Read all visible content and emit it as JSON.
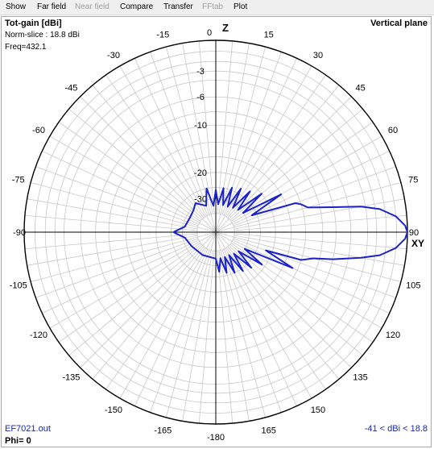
{
  "menu": [
    {
      "label": "Show",
      "enabled": true
    },
    {
      "label": "Far field",
      "enabled": true
    },
    {
      "label": "Near field",
      "enabled": false
    },
    {
      "label": "Compare",
      "enabled": true
    },
    {
      "label": "Transfer",
      "enabled": true
    },
    {
      "label": "FFtab",
      "enabled": false
    },
    {
      "label": "Plot",
      "enabled": true
    }
  ],
  "plot": {
    "title": "Tot-gain [dBi]",
    "norm_slice": "Norm-slice : 18.8 dBi",
    "freq": "Freq=432.1",
    "plane": "Vertical plane",
    "file": "EF7021.out",
    "phi": "Phi= 0",
    "range": "-41 < dBi < 18.8",
    "z_axis_label": "Z",
    "xy_axis_label": "XY",
    "angle_labels": [
      "0",
      "15",
      "30",
      "45",
      "60",
      "75",
      "90",
      "105",
      "120",
      "135",
      "150",
      "165",
      "-180",
      "-165",
      "-150",
      "-135",
      "-120",
      "-105",
      "-90",
      "-75",
      "-60",
      "-45",
      "-30",
      "-15"
    ],
    "ring_labels": [
      "-3",
      "-6",
      "-10",
      "-20",
      "-30"
    ]
  },
  "colors": {
    "trace": "#1a22c8",
    "grid": "#c8c8c8",
    "axis": "#000000",
    "label_blue": "#1a2aa0"
  },
  "chart_data": {
    "type": "polar",
    "title": "Tot-gain [dBi]",
    "unit": "dBi",
    "max_gain_dbi": 18.8,
    "min_gain_dbi": -41,
    "ring_labels_db": [
      -3,
      -6,
      -10,
      -20,
      -30
    ],
    "angle_ticks_deg": [
      0,
      15,
      30,
      45,
      60,
      75,
      90,
      105,
      120,
      135,
      150,
      165,
      -180,
      -165,
      -150,
      -135,
      -120,
      -105,
      -90,
      -75,
      -60,
      -45,
      -30,
      -15
    ],
    "series": [
      {
        "angle_deg": [
          -180,
          -150,
          -120,
          -100,
          -92,
          -90,
          -88,
          -80,
          -60,
          -45,
          -35,
          -20,
          -12,
          -5,
          0,
          5,
          10,
          15,
          20,
          25,
          30,
          35,
          40,
          45,
          50,
          55,
          60,
          65,
          70,
          72,
          75,
          78,
          80,
          82,
          85,
          88,
          90,
          92,
          95,
          98,
          100,
          103,
          105,
          108,
          110,
          115,
          120,
          125,
          130,
          135,
          140,
          145,
          150,
          155,
          160,
          165,
          170,
          175,
          180
        ],
        "relative_db": [
          -34,
          -34,
          -33,
          -31,
          -27,
          -26,
          -27,
          -31,
          -32,
          -31,
          -29,
          -33,
          -25,
          -34,
          -26,
          -33,
          -25,
          -33,
          -24,
          -33,
          -23,
          -32,
          -22,
          -31,
          -20,
          -30,
          -16,
          -27,
          -14,
          -13,
          -12,
          -8,
          -4.5,
          -2.5,
          -1,
          -0.2,
          0,
          -0.2,
          -1,
          -2.5,
          -4.5,
          -8,
          -11,
          -13,
          -22,
          -14,
          -30,
          -21,
          -32,
          -23,
          -33,
          -24,
          -34,
          -25,
          -34,
          -26,
          -34,
          -27,
          -34
        ]
      }
    ]
  }
}
